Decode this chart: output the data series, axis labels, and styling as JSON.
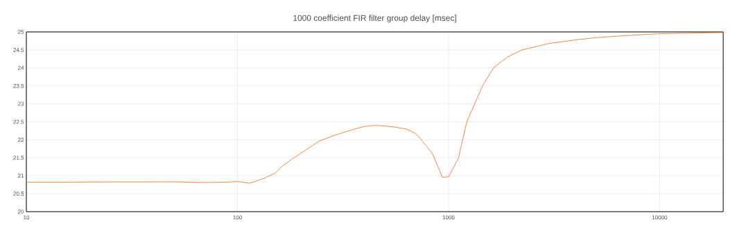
{
  "chart_data": {
    "type": "line",
    "title": "1000 coefficient FIR filter group delay [msec]",
    "log": "x",
    "grid": true,
    "marker": "none",
    "line_style": "solid",
    "xlim": [
      10,
      20000
    ],
    "xticks": [
      10,
      100,
      1000,
      10000
    ],
    "ylim": [
      20,
      25
    ],
    "yticks": [
      20,
      20.5,
      21,
      21.5,
      22,
      22.5,
      23,
      23.5,
      24,
      24.5,
      25
    ],
    "series": [
      {
        "color": "#ed7d31",
        "x": [
          10,
          50,
          70,
          90,
          100,
          114,
          130,
          150,
          162,
          180,
          198,
          243,
          290,
          360,
          400,
          450,
          505,
          560,
          632,
          700,
          735,
          790,
          834,
          890,
          935,
          1000,
          1050,
          1115,
          1160,
          1220,
          1330,
          1450,
          1630,
          1900,
          2230,
          3000,
          4000,
          5000,
          7000,
          10000,
          20000
        ],
        "values": [
          20.82,
          20.83,
          20.81,
          20.82,
          20.84,
          20.79,
          20.9,
          21.06,
          21.25,
          21.45,
          21.61,
          21.96,
          22.13,
          22.3,
          22.37,
          22.4,
          22.38,
          22.35,
          22.3,
          22.17,
          22.03,
          21.8,
          21.64,
          21.26,
          20.95,
          20.97,
          21.2,
          21.5,
          21.95,
          22.5,
          23.0,
          23.5,
          24.0,
          24.3,
          24.5,
          24.68,
          24.78,
          24.84,
          24.9,
          24.95,
          24.98
        ]
      }
    ]
  }
}
